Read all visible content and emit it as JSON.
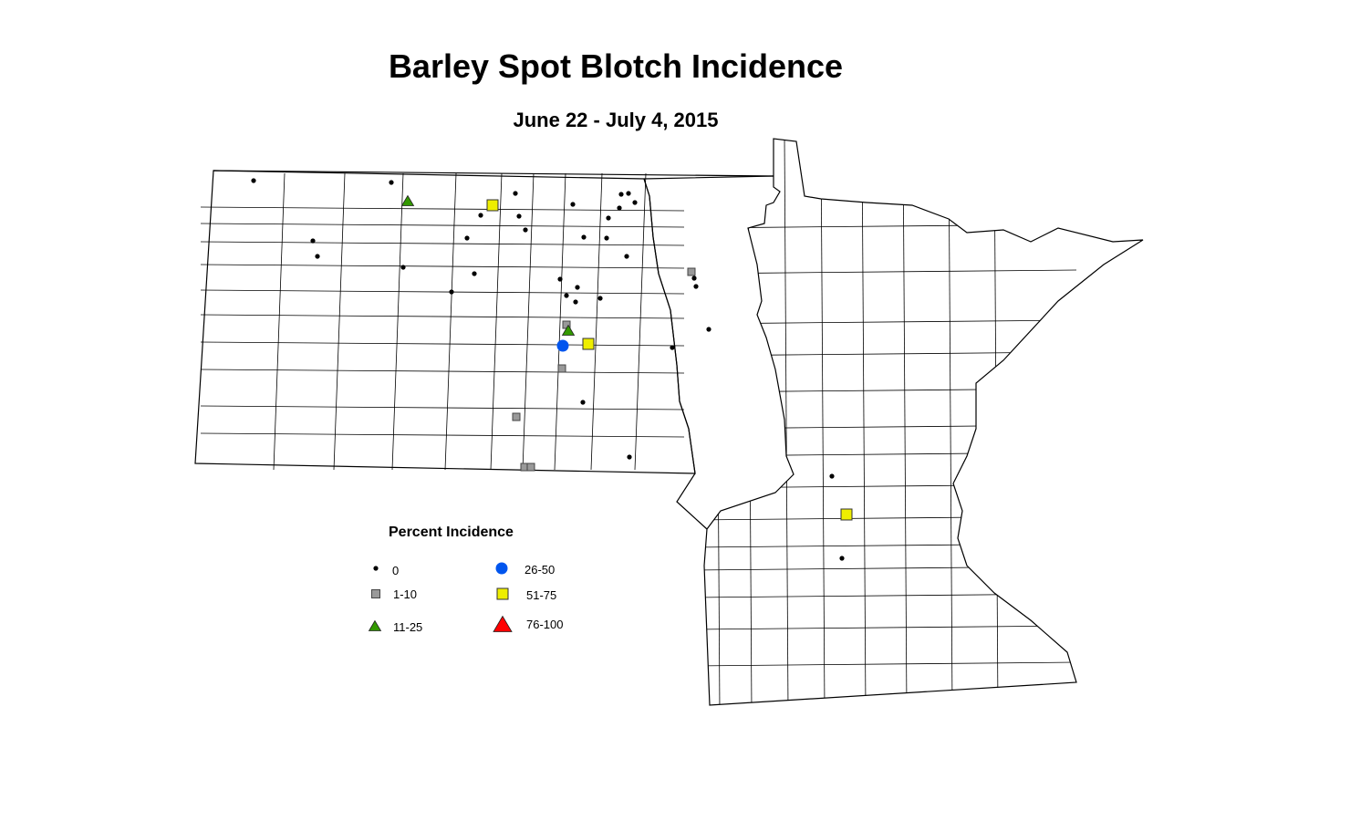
{
  "title": "Barley Spot Blotch Incidence",
  "subtitle": "June 22 - July 4, 2015",
  "legend": {
    "title": "Percent Incidence",
    "items": [
      {
        "label": "0",
        "shape": "dot",
        "color": "#000000"
      },
      {
        "label": "1-10",
        "shape": "square",
        "color": "#999999"
      },
      {
        "label": "11-25",
        "shape": "triangle",
        "color": "#339900"
      },
      {
        "label": "26-50",
        "shape": "circle",
        "color": "#0055ee"
      },
      {
        "label": "51-75",
        "shape": "square",
        "color": "#eeee00"
      },
      {
        "label": "76-100",
        "shape": "triangle",
        "color": "#ff0000"
      }
    ]
  },
  "regions": [
    "North Dakota",
    "Minnesota"
  ]
}
